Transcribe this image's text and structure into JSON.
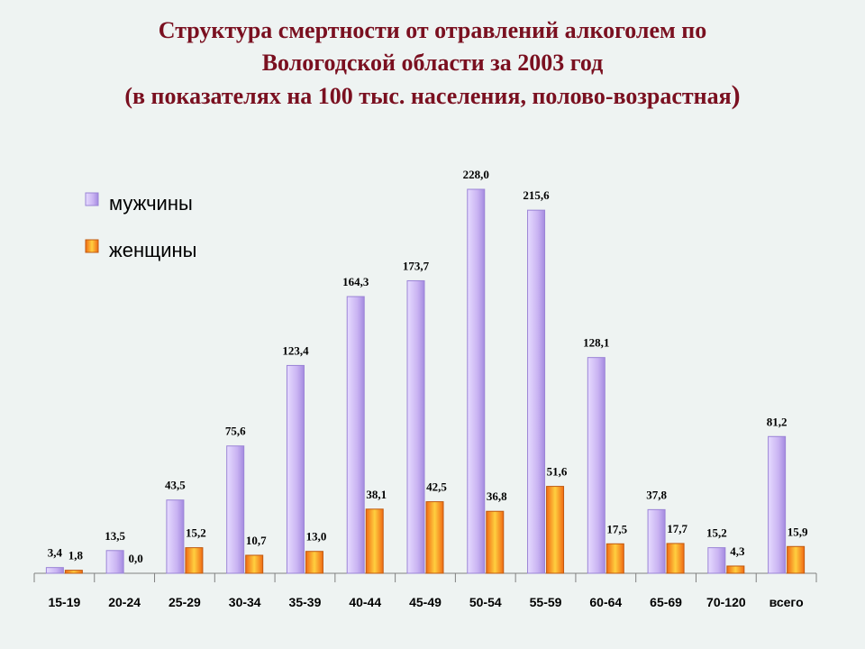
{
  "title": {
    "line1": "Структура смертности от отравлений алкоголем по",
    "line2": "Вологодской области за 2003 год",
    "line3": "(в показателях на 100 тыс. населения, полово-возрастная",
    "line3_close": ")"
  },
  "colors": {
    "men": "#c9b3f2",
    "men_dark": "#9b84d6",
    "women": "#f47a1e",
    "women_light": "#ffd24a",
    "title": "#7a1020"
  },
  "chart_data": {
    "type": "bar",
    "title": "",
    "xlabel": "",
    "ylabel": "",
    "ylim": [
      0,
      240
    ],
    "grid": false,
    "legend_position": "top-left",
    "categories": [
      "15-19",
      "20-24",
      "25-29",
      "30-34",
      "35-39",
      "40-44",
      "45-49",
      "50-54",
      "55-59",
      "60-64",
      "65-69",
      "70-120",
      "всего"
    ],
    "series": [
      {
        "name": "мужчины",
        "values": [
          3.4,
          13.5,
          43.5,
          75.6,
          123.4,
          164.3,
          173.7,
          228.0,
          215.6,
          128.1,
          37.8,
          15.2,
          81.2
        ],
        "labels": [
          "3,4",
          "13,5",
          "43,5",
          "75,6",
          "123,4",
          "164,3",
          "173,7",
          "228,0",
          "215,6",
          "128,1",
          "37,8",
          "15,2",
          "81,2"
        ]
      },
      {
        "name": "женщины",
        "values": [
          1.8,
          0.0,
          15.2,
          10.7,
          13.0,
          38.1,
          42.5,
          36.8,
          51.6,
          17.5,
          17.7,
          4.3,
          15.9
        ],
        "labels": [
          "1,8",
          "0,0",
          "15,2",
          "10,7",
          "13,0",
          "38,1",
          "42,5",
          "36,8",
          "51,6",
          "17,5",
          "17,7",
          "4,3",
          "15,9"
        ]
      }
    ]
  }
}
